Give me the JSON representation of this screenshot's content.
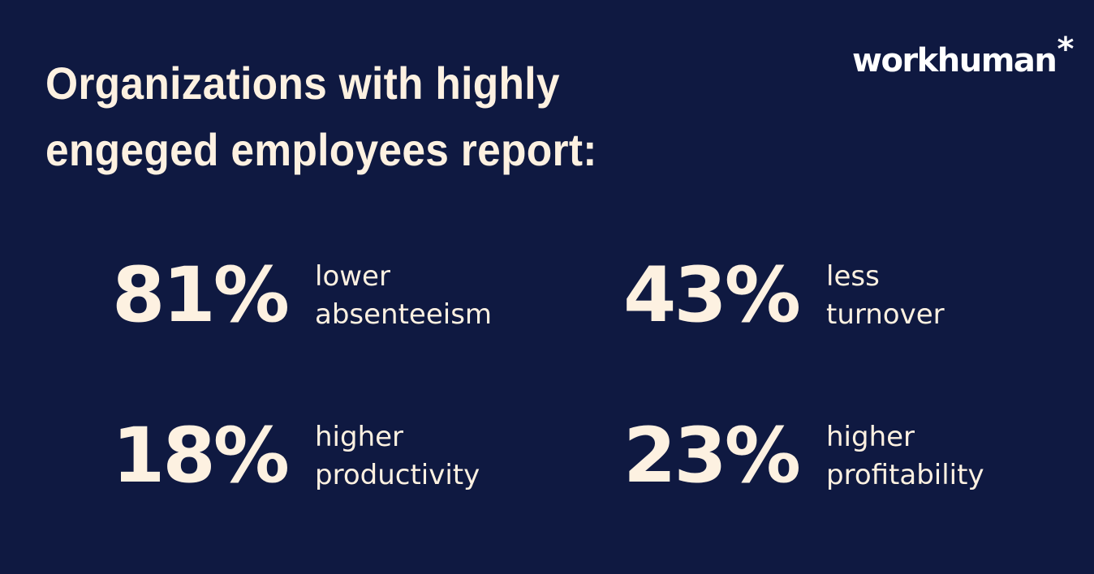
{
  "header": {
    "title_line1": "Organizations with highly",
    "title_line2": "engeged employees report:"
  },
  "logo": {
    "text": "workhuman",
    "mark": "*"
  },
  "stats": [
    {
      "value": "81%",
      "line1": "lower",
      "line2": "absenteeism"
    },
    {
      "value": "43%",
      "line1": "less",
      "line2": "turnover"
    },
    {
      "value": "18%",
      "line1": "higher",
      "line2": "productivity"
    },
    {
      "value": "23%",
      "line1": "higher",
      "line2": "profitability"
    }
  ],
  "colors": {
    "background": "#0f1941",
    "text": "#fdf1e1",
    "logo": "#ffffff"
  }
}
